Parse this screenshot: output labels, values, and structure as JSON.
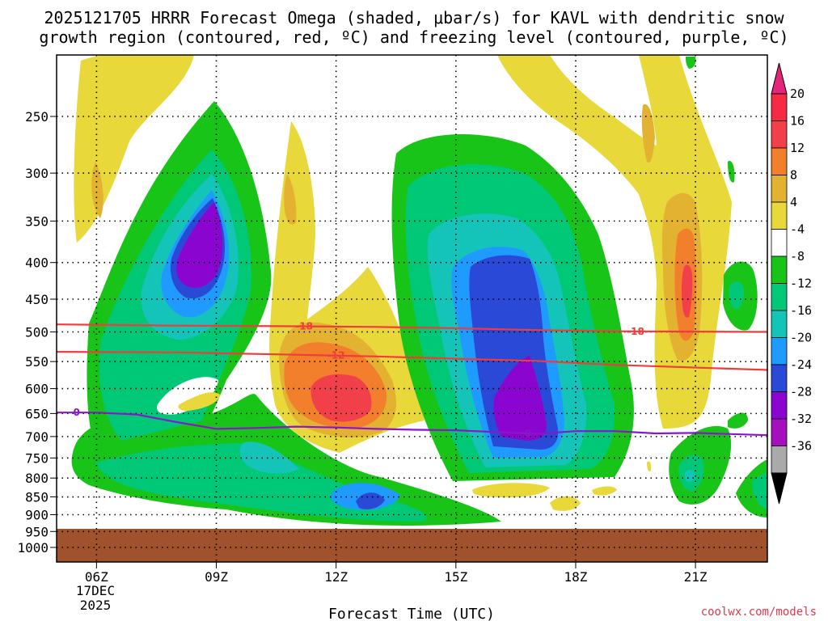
{
  "chart_data": {
    "type": "heatmap",
    "title_line1": "2025121705 HRRR Forecast Omega (shaded, μbar/s) for KAVL with dendritic snow",
    "title_line2": "growth region (contoured, red, ºC) and freezing level (contoured, purple, ºC)",
    "xlabel": "Forecast Time (UTC)",
    "ylabel": "",
    "x_ticks": [
      "06Z",
      "09Z",
      "12Z",
      "15Z",
      "18Z",
      "21Z"
    ],
    "x_tick_hours": [
      6,
      9,
      12,
      15,
      18,
      21
    ],
    "x_date_line1": "17DEC",
    "x_date_line2": "2025",
    "x_range_hours": [
      5.0,
      22.8
    ],
    "y_ticks": [
      "250",
      "300",
      "350",
      "400",
      "450",
      "500",
      "550",
      "600",
      "650",
      "700",
      "750",
      "800",
      "850",
      "900",
      "950",
      "1000"
    ],
    "y_tick_values": [
      250,
      300,
      350,
      400,
      450,
      500,
      550,
      600,
      650,
      700,
      750,
      800,
      850,
      900,
      950,
      1000
    ],
    "y_range_hpa": [
      200,
      1000
    ],
    "y_scale": "log-pressure",
    "ground_level_hpa": 940,
    "colorbar": {
      "labels": [
        "20",
        "16",
        "12",
        "8",
        "4",
        "-4",
        "-8",
        "-12",
        "-16",
        "-20",
        "-24",
        "-28",
        "-32",
        "-36"
      ],
      "colors": [
        "#f72a44",
        "#f2404a",
        "#f27f2c",
        "#e4b231",
        "#e8d83a",
        "#ffffff",
        "#19c419",
        "#00c877",
        "#15c4b8",
        "#1f9aff",
        "#2a49d6",
        "#8a06d0",
        "#a60fbd",
        "#aaaaaa"
      ],
      "top_arrow_color": "#e6247a",
      "bottom_arrow_color": "#000000"
    },
    "contours": [
      {
        "name": "dendritic-top",
        "label": "-18",
        "color": "#f03c3c",
        "points": [
          [
            5.0,
            488
          ],
          [
            8.0,
            490
          ],
          [
            11.0,
            491
          ],
          [
            13.0,
            492
          ],
          [
            15.0,
            494
          ],
          [
            17.0,
            497
          ],
          [
            19.0,
            499
          ],
          [
            22.8,
            500
          ]
        ]
      },
      {
        "name": "dendritic-bottom",
        "label": "-12",
        "color": "#f03c3c",
        "points": [
          [
            5.0,
            533
          ],
          [
            8.0,
            534
          ],
          [
            11.0,
            538
          ],
          [
            13.0,
            541
          ],
          [
            15.0,
            545
          ],
          [
            17.0,
            549
          ],
          [
            19.0,
            556
          ],
          [
            22.8,
            565
          ]
        ]
      },
      {
        "name": "freezing-level",
        "label": "0",
        "color": "#8a15cc",
        "points": [
          [
            5.0,
            648
          ],
          [
            6.0,
            648
          ],
          [
            7.0,
            652
          ],
          [
            8.0,
            668
          ],
          [
            9.0,
            683
          ],
          [
            10.0,
            681
          ],
          [
            11.0,
            678
          ],
          [
            12.0,
            680
          ],
          [
            13.0,
            683
          ],
          [
            14.0,
            685
          ],
          [
            15.0,
            686
          ],
          [
            16.0,
            690
          ],
          [
            17.0,
            694
          ],
          [
            18.0,
            688
          ],
          [
            19.0,
            688
          ],
          [
            20.0,
            693
          ],
          [
            21.0,
            692
          ],
          [
            22.8,
            697
          ]
        ]
      }
    ]
  },
  "watermark": "coolwx.com/models"
}
